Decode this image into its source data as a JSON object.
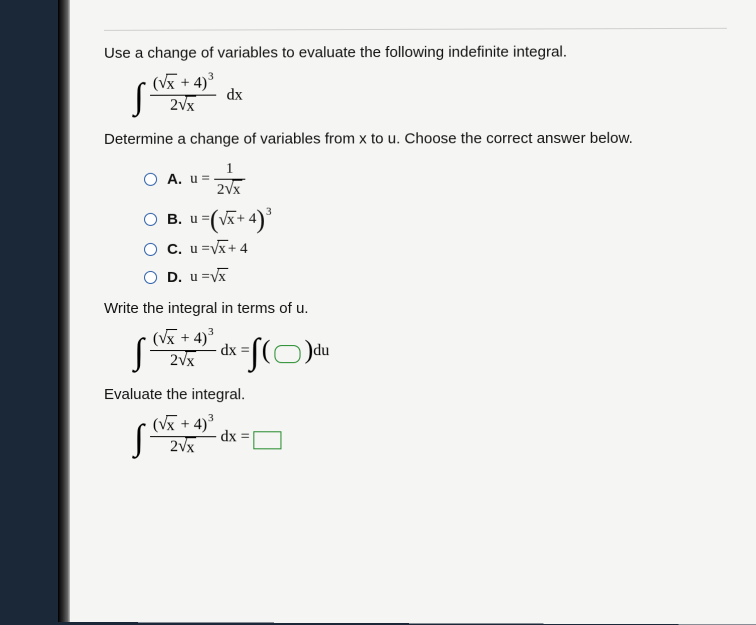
{
  "prompt": "Use a change of variables to evaluate the following indefinite integral.",
  "integral": {
    "numerator_base_open": "(",
    "sqrt_sym": "√",
    "sqrt_arg": "x",
    "plus4": " + 4",
    "numerator_base_close": ")",
    "exponent": "3",
    "denominator_2": "2",
    "after": "dx"
  },
  "subprompt1": "Determine a change of variables from x to u. Choose the correct answer below.",
  "choices": {
    "A": {
      "label": "A.",
      "prefix": "u = ",
      "num_1": "1"
    },
    "B": {
      "label": "B.",
      "prefix": "u = "
    },
    "C": {
      "label": "C.",
      "text": "u = ",
      "tail": " + 4"
    },
    "D": {
      "label": "D.",
      "text": "u = "
    }
  },
  "subprompt2": "Write the integral in terms of u.",
  "rhs1": {
    "eq": " dx = ",
    "du": " du"
  },
  "subprompt3": "Evaluate the integral.",
  "rhs2": {
    "eq": " dx = "
  },
  "colors": {
    "radio_border": "#2a5da8",
    "blank_border": "#228a2a"
  }
}
